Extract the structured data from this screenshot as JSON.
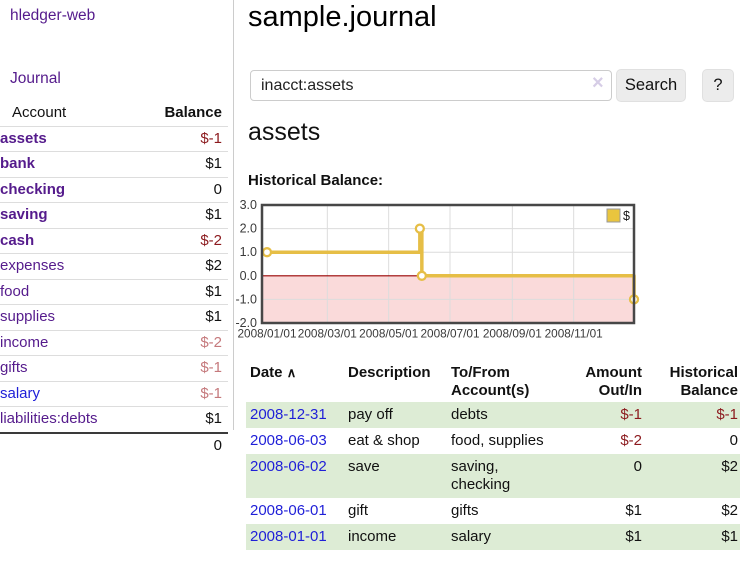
{
  "app": {
    "brand": "hledger-web"
  },
  "sidebar": {
    "journal_link": "Journal",
    "accounts": {
      "header": {
        "account": "Account",
        "balance": "Balance"
      },
      "rows": [
        {
          "name": "assets",
          "balance": "$-1"
        },
        {
          "name": "bank",
          "balance": "$1"
        },
        {
          "name": "checking",
          "balance": "0"
        },
        {
          "name": "saving",
          "balance": "$1"
        },
        {
          "name": "cash",
          "balance": "$-2"
        },
        {
          "name": "expenses",
          "balance": "$2"
        },
        {
          "name": "food",
          "balance": "$1"
        },
        {
          "name": "supplies",
          "balance": "$1"
        },
        {
          "name": "income",
          "balance": "$-2"
        },
        {
          "name": "gifts",
          "balance": "$-1"
        },
        {
          "name": "salary",
          "balance": "$-1"
        },
        {
          "name": "liabilities:debts",
          "balance": "$1"
        }
      ],
      "total": "0"
    }
  },
  "header": {
    "title": "sample.journal"
  },
  "search": {
    "value": "inacct:assets",
    "clear_icon": "×",
    "search_button": "Search",
    "help_button": "?"
  },
  "account_view": {
    "title": "assets",
    "section_label": "Historical Balance:"
  },
  "chart_data": {
    "type": "line",
    "step": true,
    "title": "Historical Balance",
    "legend": [
      {
        "label": "$",
        "color": "#e9c53e",
        "position": "top-right"
      }
    ],
    "x_ticks": [
      "2008/01/01",
      "2008/03/01",
      "2008/05/01",
      "2008/07/01",
      "2008/09/01",
      "2008/11/01"
    ],
    "y_ticks": [
      "3.0",
      "2.0",
      "1.0",
      "0.0",
      "-1.0",
      "-2.0"
    ],
    "ylim": [
      -2,
      3
    ],
    "xlim": [
      "2008-01-01",
      "2008-12-31"
    ],
    "grid": true,
    "negative_region_color": "#fadada",
    "zero_line_color": "#990000",
    "series": [
      {
        "name": "$",
        "color": "#e6be46",
        "points": [
          [
            "2008-01-01",
            1
          ],
          [
            "2008-06-01",
            2
          ],
          [
            "2008-06-03",
            0
          ],
          [
            "2008-12-31",
            -1
          ]
        ]
      }
    ]
  },
  "register": {
    "headers": {
      "date": "Date",
      "sort_icon": "∧",
      "description": "Description",
      "account": "To/From\nAccount(s)",
      "amount": "Amount\nOut/In",
      "balance": "Historical\nBalance"
    },
    "rows": [
      {
        "date": "2008-12-31",
        "description": "pay off",
        "accounts": "debts",
        "amount": "$-1",
        "balance": "$-1"
      },
      {
        "date": "2008-06-03",
        "description": "eat & shop",
        "accounts": "food, supplies",
        "amount": "$-2",
        "balance": "0"
      },
      {
        "date": "2008-06-02",
        "description": "save",
        "accounts": "saving,\nchecking",
        "amount": "0",
        "balance": "$2"
      },
      {
        "date": "2008-06-01",
        "description": "gift",
        "accounts": "gifts",
        "amount": "$1",
        "balance": "$2"
      },
      {
        "date": "2008-01-01",
        "description": "income",
        "accounts": "salary",
        "amount": "$1",
        "balance": "$1"
      }
    ]
  }
}
